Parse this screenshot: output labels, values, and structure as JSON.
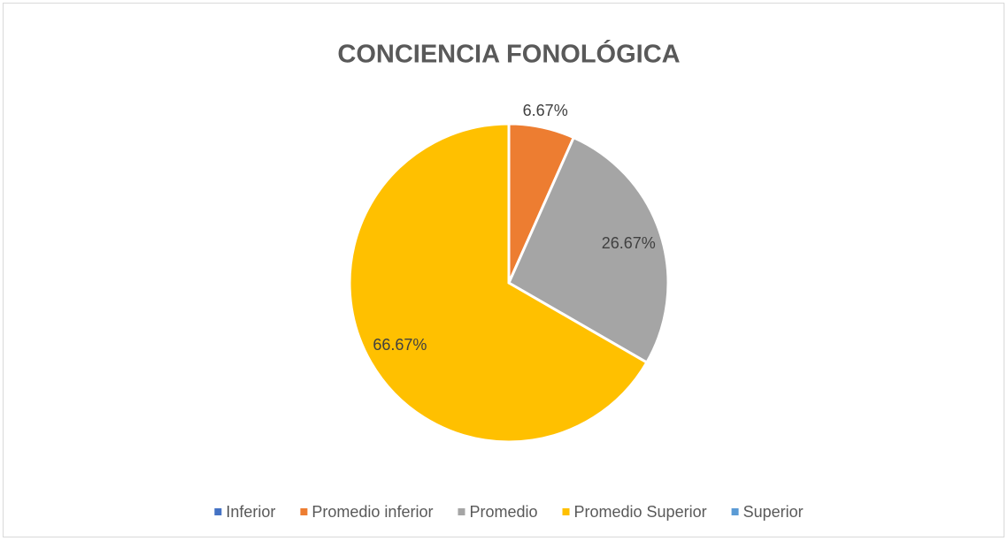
{
  "chart_data": {
    "type": "pie",
    "title": "CONCIENCIA FONOLÓGICA",
    "categories": [
      "Inferior",
      "Promedio inferior",
      "Promedio",
      "Promedio Superior",
      "Superior"
    ],
    "values": [
      0,
      6.67,
      26.67,
      66.67,
      0
    ],
    "value_labels": [
      null,
      "6.67%",
      "26.67%",
      "66.67%",
      null
    ],
    "colors": [
      "#4472c4",
      "#ed7d31",
      "#a5a5a5",
      "#ffc000",
      "#5b9bd5"
    ],
    "legend": "bottom"
  }
}
